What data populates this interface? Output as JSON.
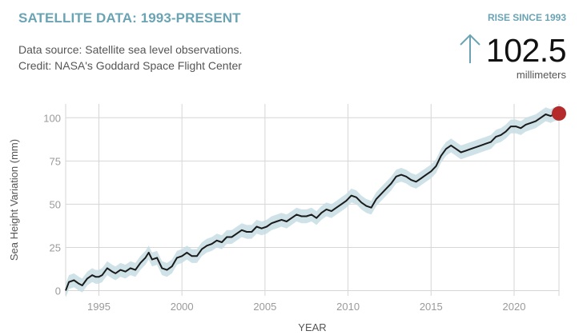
{
  "header": {
    "title": "SATELLITE DATA: 1993-PRESENT",
    "source_line1": "Data source: Satellite sea level observations.",
    "source_line2": "Credit: NASA's Goddard Space Flight Center",
    "rise_label": "RISE SINCE 1993",
    "rise_value": "102.5",
    "rise_unit": "millimeters"
  },
  "colors": {
    "accent": "#6aa4b4",
    "line": "#1a1a1a",
    "band": "#c7dde3",
    "endpoint": "#b52a2a",
    "grid": "#d6d6d6"
  },
  "chart_data": {
    "type": "line",
    "xlabel": "YEAR",
    "ylabel": "Sea Height Variation (mm)",
    "xlim": [
      1993,
      2022.7
    ],
    "ylim": [
      -3,
      108
    ],
    "x_ticks": [
      1995,
      2000,
      2005,
      2010,
      2015,
      2020
    ],
    "y_ticks": [
      0,
      25,
      50,
      75,
      100
    ],
    "uncertainty_mm": 4,
    "series": [
      {
        "name": "Sea Height Variation",
        "points": [
          [
            1993.0,
            0
          ],
          [
            1993.2,
            5
          ],
          [
            1993.5,
            6
          ],
          [
            1993.8,
            4
          ],
          [
            1994.0,
            3
          ],
          [
            1994.3,
            7
          ],
          [
            1994.6,
            9
          ],
          [
            1994.8,
            8
          ],
          [
            1995.0,
            8
          ],
          [
            1995.2,
            9
          ],
          [
            1995.5,
            13
          ],
          [
            1995.8,
            11
          ],
          [
            1996.0,
            10
          ],
          [
            1996.3,
            12
          ],
          [
            1996.6,
            11
          ],
          [
            1996.9,
            13
          ],
          [
            1997.2,
            12
          ],
          [
            1997.5,
            16
          ],
          [
            1997.8,
            19
          ],
          [
            1998.0,
            22
          ],
          [
            1998.2,
            18
          ],
          [
            1998.5,
            19
          ],
          [
            1998.8,
            13
          ],
          [
            1999.1,
            12
          ],
          [
            1999.4,
            14
          ],
          [
            1999.7,
            19
          ],
          [
            2000.0,
            20
          ],
          [
            2000.3,
            22
          ],
          [
            2000.6,
            20
          ],
          [
            2000.9,
            20
          ],
          [
            2001.2,
            24
          ],
          [
            2001.5,
            26
          ],
          [
            2001.8,
            27
          ],
          [
            2002.1,
            29
          ],
          [
            2002.4,
            28
          ],
          [
            2002.7,
            31
          ],
          [
            2003.0,
            31
          ],
          [
            2003.3,
            33
          ],
          [
            2003.6,
            35
          ],
          [
            2003.9,
            34
          ],
          [
            2004.2,
            34
          ],
          [
            2004.5,
            37
          ],
          [
            2004.8,
            36
          ],
          [
            2005.1,
            37
          ],
          [
            2005.4,
            39
          ],
          [
            2005.7,
            40
          ],
          [
            2006.0,
            41
          ],
          [
            2006.3,
            40
          ],
          [
            2006.6,
            42
          ],
          [
            2006.9,
            44
          ],
          [
            2007.2,
            43
          ],
          [
            2007.5,
            43
          ],
          [
            2007.8,
            44
          ],
          [
            2008.1,
            42
          ],
          [
            2008.4,
            45
          ],
          [
            2008.7,
            47
          ],
          [
            2009.0,
            46
          ],
          [
            2009.3,
            48
          ],
          [
            2009.6,
            50
          ],
          [
            2009.9,
            52
          ],
          [
            2010.2,
            55
          ],
          [
            2010.5,
            54
          ],
          [
            2010.8,
            51
          ],
          [
            2011.1,
            49
          ],
          [
            2011.4,
            48
          ],
          [
            2011.7,
            53
          ],
          [
            2012.0,
            56
          ],
          [
            2012.3,
            59
          ],
          [
            2012.6,
            62
          ],
          [
            2012.9,
            66
          ],
          [
            2013.2,
            67
          ],
          [
            2013.5,
            66
          ],
          [
            2013.8,
            64
          ],
          [
            2014.1,
            63
          ],
          [
            2014.4,
            65
          ],
          [
            2014.7,
            67
          ],
          [
            2015.0,
            69
          ],
          [
            2015.3,
            72
          ],
          [
            2015.6,
            78
          ],
          [
            2015.9,
            82
          ],
          [
            2016.2,
            84
          ],
          [
            2016.5,
            82
          ],
          [
            2016.8,
            80
          ],
          [
            2017.1,
            81
          ],
          [
            2017.4,
            82
          ],
          [
            2017.7,
            83
          ],
          [
            2018.0,
            84
          ],
          [
            2018.3,
            85
          ],
          [
            2018.6,
            86
          ],
          [
            2018.9,
            89
          ],
          [
            2019.2,
            90
          ],
          [
            2019.5,
            92
          ],
          [
            2019.8,
            95
          ],
          [
            2020.1,
            95
          ],
          [
            2020.4,
            94
          ],
          [
            2020.7,
            96
          ],
          [
            2021.0,
            97
          ],
          [
            2021.3,
            98
          ],
          [
            2021.6,
            100
          ],
          [
            2021.9,
            102
          ],
          [
            2022.2,
            101
          ],
          [
            2022.4,
            102
          ],
          [
            2022.7,
            102.5
          ]
        ]
      }
    ],
    "endpoint": [
      2022.7,
      102.5
    ]
  }
}
